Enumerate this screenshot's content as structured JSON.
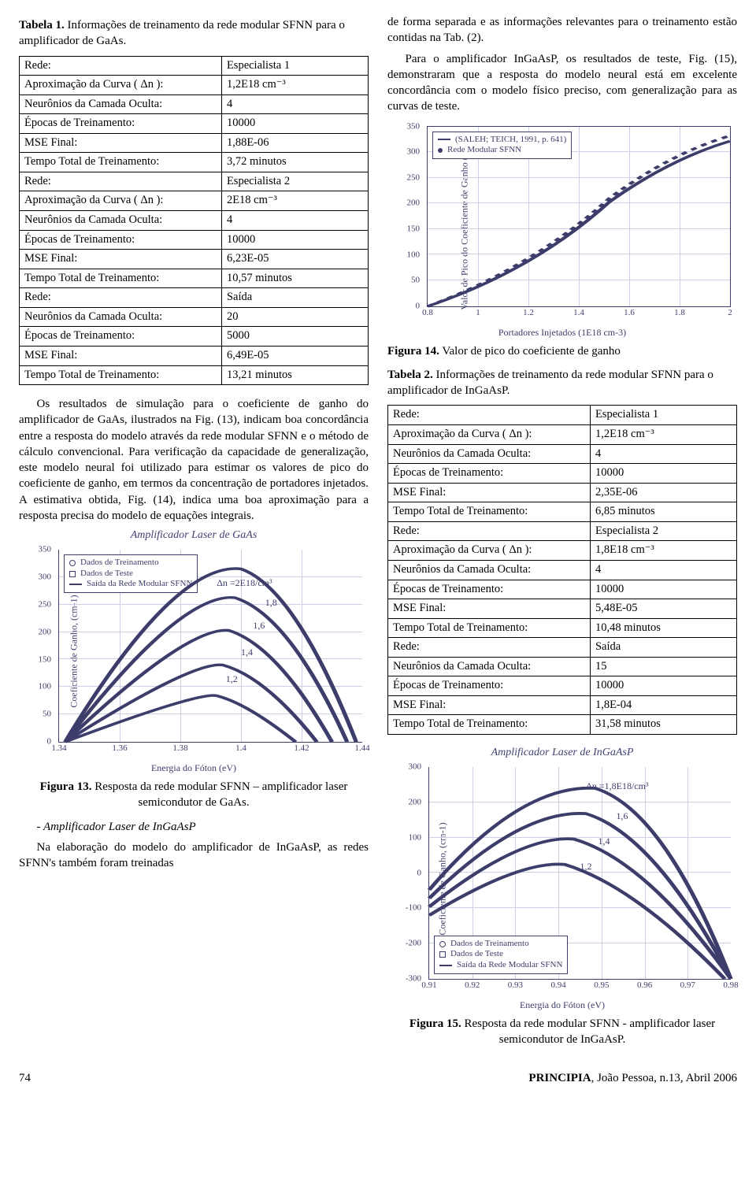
{
  "colors": {
    "text": "#000000",
    "chart_stroke": "#3d3d6b",
    "grid": "#cfcfe6",
    "background": "#ffffff"
  },
  "typography": {
    "body_family": "Times New Roman",
    "body_size_pt": 11,
    "caption_bold_weight": "bold"
  },
  "left": {
    "tabela1_label": "Tabela 1.",
    "tabela1_text": " Informações de treinamento da rede modular SFNN para o amplificador de GaAs.",
    "table1": {
      "rows": [
        [
          "Rede:",
          "Especialista 1"
        ],
        [
          "Aproximação da Curva ( Δn ):",
          "1,2E18 cm⁻³"
        ],
        [
          "Neurônios da Camada Oculta:",
          "4"
        ],
        [
          "Épocas de Treinamento:",
          "10000"
        ],
        [
          "MSE Final:",
          "1,88E-06"
        ],
        [
          "Tempo Total de Treinamento:",
          "3,72 minutos"
        ],
        [
          "Rede:",
          "Especialista 2"
        ],
        [
          "Aproximação da Curva ( Δn ):",
          "2E18 cm⁻³"
        ],
        [
          "Neurônios da Camada Oculta:",
          "4"
        ],
        [
          "Épocas de Treinamento:",
          "10000"
        ],
        [
          "MSE Final:",
          "6,23E-05"
        ],
        [
          "Tempo Total de Treinamento:",
          "10,57 minutos"
        ],
        [
          "Rede:",
          "Saída"
        ],
        [
          "Neurônios da Camada Oculta:",
          "20"
        ],
        [
          "Épocas de Treinamento:",
          "5000"
        ],
        [
          "MSE Final:",
          "6,49E-05"
        ],
        [
          "Tempo Total de Treinamento:",
          "13,21 minutos"
        ]
      ],
      "section_starts": [
        0,
        6,
        12
      ]
    },
    "para1": "Os resultados de simulação para o coeficiente de ganho do amplificador de GaAs, ilustrados na Fig. (13), indicam boa concordância entre a resposta do modelo através da rede modular SFNN e o método de cálculo convencional. Para verificação da capacidade de generalização, este modelo neural foi utilizado para estimar os valores de pico do coeficiente de ganho, em termos da concentração de portadores injetados. A estimativa obtida, Fig. (14), indica uma boa aproximação para a resposta precisa do modelo de equações integrais.",
    "fig13": {
      "type": "line",
      "title": "Amplificador Laser de GaAs",
      "xlabel": "Energia do Fóton (eV)",
      "ylabel": "Coeficiente de Ganho, (cm-1)",
      "xlim": [
        1.34,
        1.44
      ],
      "ylim": [
        0,
        350
      ],
      "xtick_step": 0.02,
      "ytick_step": 50,
      "xticks": [
        "1.34",
        "1.36",
        "1.38",
        "1.4",
        "1.42",
        "1.44"
      ],
      "yticks": [
        "0",
        "50",
        "100",
        "150",
        "200",
        "250",
        "300",
        "350"
      ],
      "annotation": "Δn =2E18/cm³",
      "curve_labels": [
        "1,2",
        "1,4",
        "1,6",
        "1,8"
      ],
      "legend": [
        "Dados de Treinamento",
        "Dados de Teste",
        "Saída da Rede Modular SFNN"
      ],
      "series_style": {
        "line_color": "#3d3d6b",
        "marker_colors": [
          "#3d3d6b",
          "#3d3d6b"
        ],
        "line_width": 1.4
      },
      "grid": true,
      "background_color": "#ffffff"
    },
    "fig13_label": "Figura 13.",
    "fig13_text": " Resposta da rede modular SFNN – amplificador laser semicondutor de GaAs.",
    "subhead": "- Amplificador Laser de InGaAsP",
    "para2": "Na elaboração do modelo do amplificador de InGaAsP, as redes SFNN's também foram treinadas"
  },
  "right": {
    "para1": "de forma separada e as informações relevantes para o treinamento estão contidas na Tab. (2).",
    "para2": "Para o amplificador InGaAsP, os resultados de teste, Fig. (15), demonstraram que a resposta do modelo neural está em excelente concordância com o modelo físico preciso, com generalização para as curvas de teste.",
    "fig14": {
      "type": "line",
      "xlabel": "Portadores Injetados (1E18 cm-3)",
      "ylabel": "Valor de Pico do Coeficiente de Ganho (cm-1)",
      "xlim": [
        0.8,
        2.0
      ],
      "ylim": [
        0,
        350
      ],
      "xtick_step": 0.2,
      "ytick_step": 50,
      "xticks": [
        "0.8",
        "1",
        "1.2",
        "1.4",
        "1.6",
        "1.8",
        "2"
      ],
      "yticks": [
        "0",
        "50",
        "100",
        "150",
        "200",
        "250",
        "300",
        "350"
      ],
      "legend": [
        "(SALEH; TEICH, 1991, p. 641)",
        "Rede Modular SFNN"
      ],
      "series_style": {
        "line_color": "#3d3d6b",
        "marker": "dot",
        "line_width": 1.4
      },
      "grid": true,
      "background_color": "#ffffff",
      "data_est": {
        "x": [
          0.8,
          1.0,
          1.2,
          1.4,
          1.6,
          1.8,
          2.0
        ],
        "y": [
          0,
          35,
          90,
          155,
          215,
          270,
          320
        ]
      }
    },
    "fig14_label": "Figura 14.",
    "fig14_text": " Valor de pico do coeficiente de ganho",
    "tabela2_label": "Tabela 2.",
    "tabela2_text": " Informações de treinamento da rede modular SFNN para o amplificador de InGaAsP.",
    "table2": {
      "rows": [
        [
          "Rede:",
          "Especialista 1"
        ],
        [
          "Aproximação da Curva ( Δn ):",
          "1,2E18 cm⁻³"
        ],
        [
          "Neurônios da Camada Oculta:",
          "4"
        ],
        [
          "Épocas de Treinamento:",
          "10000"
        ],
        [
          "MSE Final:",
          "2,35E-06"
        ],
        [
          "Tempo Total de Treinamento:",
          "6,85 minutos"
        ],
        [
          "Rede:",
          "Especialista 2"
        ],
        [
          "Aproximação da Curva ( Δn ):",
          "1,8E18 cm⁻³"
        ],
        [
          "Neurônios da Camada Oculta:",
          "4"
        ],
        [
          "Épocas de Treinamento:",
          "10000"
        ],
        [
          "MSE Final:",
          "5,48E-05"
        ],
        [
          "Tempo Total de Treinamento:",
          "10,48 minutos"
        ],
        [
          "Rede:",
          "Saída"
        ],
        [
          "Neurônios da Camada Oculta:",
          "15"
        ],
        [
          "Épocas de Treinamento:",
          "10000"
        ],
        [
          "MSE Final:",
          "1,8E-04"
        ],
        [
          "Tempo Total de Treinamento:",
          "31,58 minutos"
        ]
      ],
      "section_starts": [
        0,
        6,
        12
      ]
    },
    "fig15": {
      "type": "line",
      "title": "Amplificador Laser de InGaAsP",
      "xlabel": "Energia do Fóton (eV)",
      "ylabel": "Coeficiente de Ganho, (cm-1)",
      "xlim": [
        0.91,
        0.98
      ],
      "ylim": [
        -300,
        300
      ],
      "xtick_step": 0.01,
      "ytick_step": 100,
      "xticks": [
        "0.91",
        "0.92",
        "0.93",
        "0.94",
        "0.95",
        "0.96",
        "0.97",
        "0.98"
      ],
      "yticks": [
        "-300",
        "-200",
        "-100",
        "0",
        "100",
        "200",
        "300"
      ],
      "annotation": "Δn =1,8E18/cm³",
      "curve_labels": [
        "1,2",
        "1,4",
        "1,6"
      ],
      "legend": [
        "Dados de Treinamento",
        "Dados de Teste",
        "Saída da Rede Modular SFNN"
      ],
      "series_style": {
        "line_color": "#3d3d6b",
        "line_width": 1.4
      },
      "grid": true,
      "background_color": "#ffffff"
    },
    "fig15_label": "Figura 15.",
    "fig15_text": " Resposta da rede modular SFNN - amplificador laser semicondutor de InGaAsP."
  },
  "footer": {
    "page": "74",
    "journal_bold": "PRINCIPIA",
    "journal_rest": ", João Pessoa, n.13, Abril 2006"
  }
}
